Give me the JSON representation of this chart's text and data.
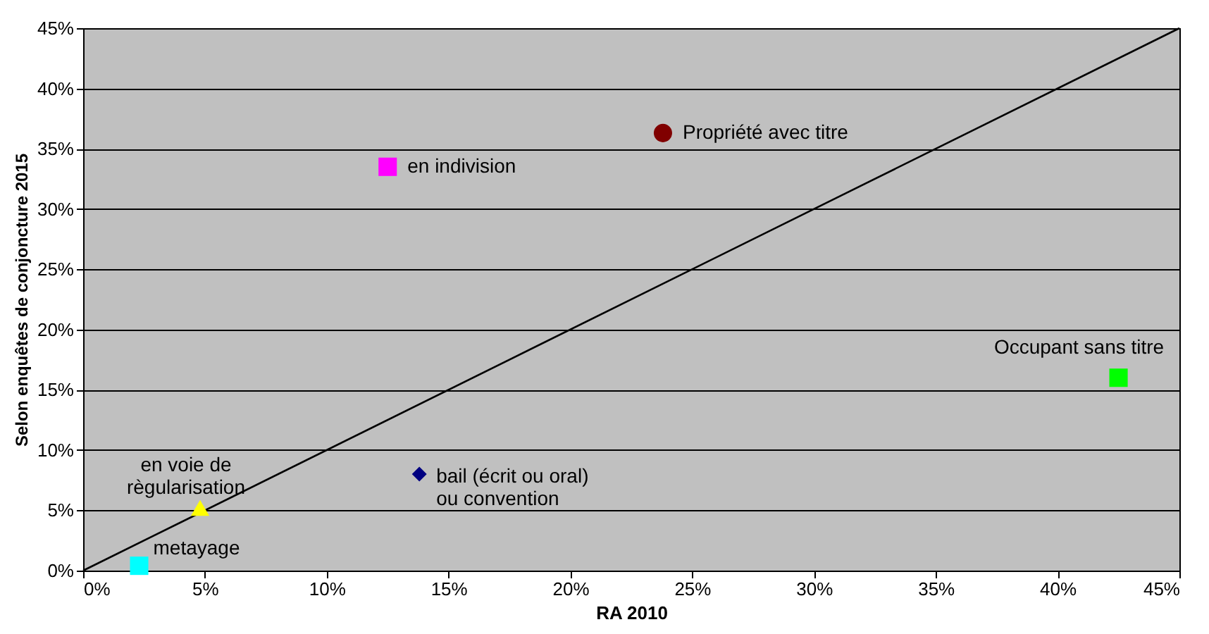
{
  "chart_data": {
    "type": "scatter",
    "xlabel": "RA 2010",
    "ylabel": "Selon enquêtes de conjoncture 2015",
    "xlim": [
      0,
      45
    ],
    "ylim": [
      0,
      45
    ],
    "xticks": [
      {
        "value": 0,
        "label": "0%"
      },
      {
        "value": 5,
        "label": "5%"
      },
      {
        "value": 10,
        "label": "10%"
      },
      {
        "value": 15,
        "label": "15%"
      },
      {
        "value": 20,
        "label": "20%"
      },
      {
        "value": 25,
        "label": "25%"
      },
      {
        "value": 30,
        "label": "30%"
      },
      {
        "value": 35,
        "label": "35%"
      },
      {
        "value": 40,
        "label": "40%"
      },
      {
        "value": 45,
        "label": "45%"
      }
    ],
    "yticks": [
      {
        "value": 0,
        "label": "0%"
      },
      {
        "value": 5,
        "label": "5%"
      },
      {
        "value": 10,
        "label": "10%"
      },
      {
        "value": 15,
        "label": "15%"
      },
      {
        "value": 20,
        "label": "20%"
      },
      {
        "value": 25,
        "label": "25%"
      },
      {
        "value": 30,
        "label": "30%"
      },
      {
        "value": 35,
        "label": "35%"
      },
      {
        "value": 40,
        "label": "40%"
      },
      {
        "value": 45,
        "label": "45%"
      }
    ],
    "grid": "y",
    "series": [
      {
        "type": "line",
        "color": "#000000",
        "x": [
          0,
          45
        ],
        "values": [
          0,
          45
        ],
        "marker": "none"
      },
      {
        "name": "Propriété avec titre",
        "color": "#800000",
        "marker": "circle",
        "x": [
          23.8
        ],
        "values": [
          36.3
        ]
      },
      {
        "name": "en indivision",
        "color": "#ff00ff",
        "marker": "square",
        "x": [
          12.5
        ],
        "values": [
          33.5
        ]
      },
      {
        "name": "Occupant sans titre",
        "color": "#00ff00",
        "marker": "square",
        "x": [
          42.5
        ],
        "values": [
          16.0
        ]
      },
      {
        "name": "bail (écrit ou oral)\nou convention",
        "color": "#000080",
        "marker": "diamond",
        "x": [
          13.8
        ],
        "values": [
          8.0
        ]
      },
      {
        "name": "en voie de\nrègularisation",
        "color": "#ffff00",
        "marker": "triangle",
        "x": [
          4.8
        ],
        "values": [
          5.2
        ]
      },
      {
        "name": "metayage",
        "color": "#00ffff",
        "marker": "square",
        "x": [
          2.3
        ],
        "values": [
          0.4
        ]
      }
    ]
  }
}
